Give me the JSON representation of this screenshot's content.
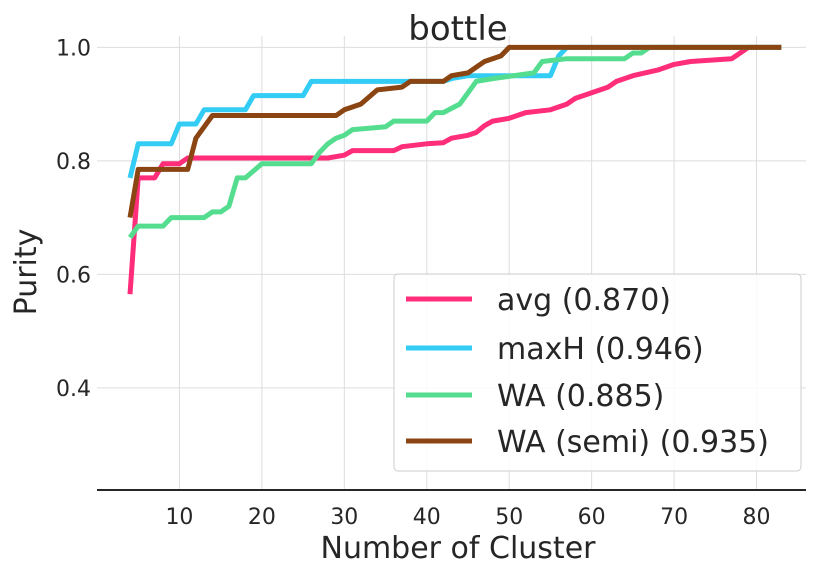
{
  "chart_data": {
    "type": "line",
    "title": "bottle",
    "xlabel": "Number of Cluster",
    "ylabel": "Purity",
    "xlim": [
      0,
      86
    ],
    "ylim": [
      0.22,
      1.02
    ],
    "xticks": [
      10,
      20,
      30,
      40,
      50,
      60,
      70,
      80
    ],
    "yticks": [
      0.4,
      0.6,
      0.8,
      1.0
    ],
    "xtick_labels": [
      "10",
      "20",
      "30",
      "40",
      "50",
      "60",
      "70",
      "80"
    ],
    "ytick_labels": [
      "0.4",
      "0.6",
      "0.8",
      "1.0"
    ],
    "grid": true,
    "legend_position": "lower-right",
    "series": [
      {
        "name": "avg",
        "label": "avg (0.870)",
        "color": "#ff2d7a",
        "points": [
          [
            4,
            0.565
          ],
          [
            5,
            0.77
          ],
          [
            7,
            0.77
          ],
          [
            8,
            0.795
          ],
          [
            10,
            0.795
          ],
          [
            11,
            0.805
          ],
          [
            28,
            0.805
          ],
          [
            30,
            0.81
          ],
          [
            31,
            0.818
          ],
          [
            36,
            0.818
          ],
          [
            37,
            0.825
          ],
          [
            40,
            0.83
          ],
          [
            42,
            0.832
          ],
          [
            43,
            0.84
          ],
          [
            45,
            0.845
          ],
          [
            46,
            0.85
          ],
          [
            47,
            0.862
          ],
          [
            48,
            0.87
          ],
          [
            50,
            0.875
          ],
          [
            52,
            0.885
          ],
          [
            55,
            0.89
          ],
          [
            57,
            0.9
          ],
          [
            58,
            0.91
          ],
          [
            60,
            0.92
          ],
          [
            62,
            0.93
          ],
          [
            63,
            0.94
          ],
          [
            65,
            0.95
          ],
          [
            68,
            0.96
          ],
          [
            70,
            0.97
          ],
          [
            72,
            0.975
          ],
          [
            77,
            0.98
          ],
          [
            79,
            1.0
          ],
          [
            83,
            1.0
          ]
        ]
      },
      {
        "name": "maxH",
        "label": "maxH (0.946)",
        "color": "#33ccf5",
        "points": [
          [
            4,
            0.77
          ],
          [
            5,
            0.83
          ],
          [
            9,
            0.83
          ],
          [
            10,
            0.865
          ],
          [
            12,
            0.865
          ],
          [
            13,
            0.89
          ],
          [
            18,
            0.89
          ],
          [
            19,
            0.915
          ],
          [
            25,
            0.915
          ],
          [
            26,
            0.94
          ],
          [
            42,
            0.94
          ],
          [
            43,
            0.945
          ],
          [
            45,
            0.95
          ],
          [
            55,
            0.95
          ],
          [
            56,
            0.985
          ],
          [
            57,
            1.0
          ],
          [
            83,
            1.0
          ]
        ]
      },
      {
        "name": "WA",
        "label": "WA (0.885)",
        "color": "#55dd8f",
        "points": [
          [
            4,
            0.665
          ],
          [
            5,
            0.685
          ],
          [
            8,
            0.685
          ],
          [
            9,
            0.7
          ],
          [
            13,
            0.7
          ],
          [
            14,
            0.71
          ],
          [
            15,
            0.71
          ],
          [
            16,
            0.72
          ],
          [
            17,
            0.77
          ],
          [
            18,
            0.77
          ],
          [
            20,
            0.795
          ],
          [
            26,
            0.795
          ],
          [
            27,
            0.815
          ],
          [
            28,
            0.83
          ],
          [
            29,
            0.84
          ],
          [
            30,
            0.845
          ],
          [
            31,
            0.855
          ],
          [
            35,
            0.86
          ],
          [
            36,
            0.87
          ],
          [
            40,
            0.87
          ],
          [
            41,
            0.885
          ],
          [
            42,
            0.885
          ],
          [
            44,
            0.9
          ],
          [
            45,
            0.92
          ],
          [
            46,
            0.94
          ],
          [
            48,
            0.945
          ],
          [
            53,
            0.955
          ],
          [
            54,
            0.975
          ],
          [
            57,
            0.98
          ],
          [
            64,
            0.98
          ],
          [
            65,
            0.99
          ],
          [
            66,
            0.99
          ],
          [
            67,
            1.0
          ],
          [
            83,
            1.0
          ]
        ]
      },
      {
        "name": "WA (semi)",
        "label": "WA (semi) (0.935)",
        "color": "#8b4513",
        "points": [
          [
            4,
            0.7
          ],
          [
            5,
            0.785
          ],
          [
            11,
            0.785
          ],
          [
            12,
            0.84
          ],
          [
            13,
            0.86
          ],
          [
            14,
            0.88
          ],
          [
            29,
            0.88
          ],
          [
            30,
            0.89
          ],
          [
            32,
            0.9
          ],
          [
            34,
            0.925
          ],
          [
            37,
            0.93
          ],
          [
            38,
            0.94
          ],
          [
            42,
            0.94
          ],
          [
            43,
            0.95
          ],
          [
            45,
            0.955
          ],
          [
            46,
            0.965
          ],
          [
            47,
            0.975
          ],
          [
            49,
            0.985
          ],
          [
            50,
            1.0
          ],
          [
            83,
            1.0
          ]
        ]
      }
    ]
  }
}
